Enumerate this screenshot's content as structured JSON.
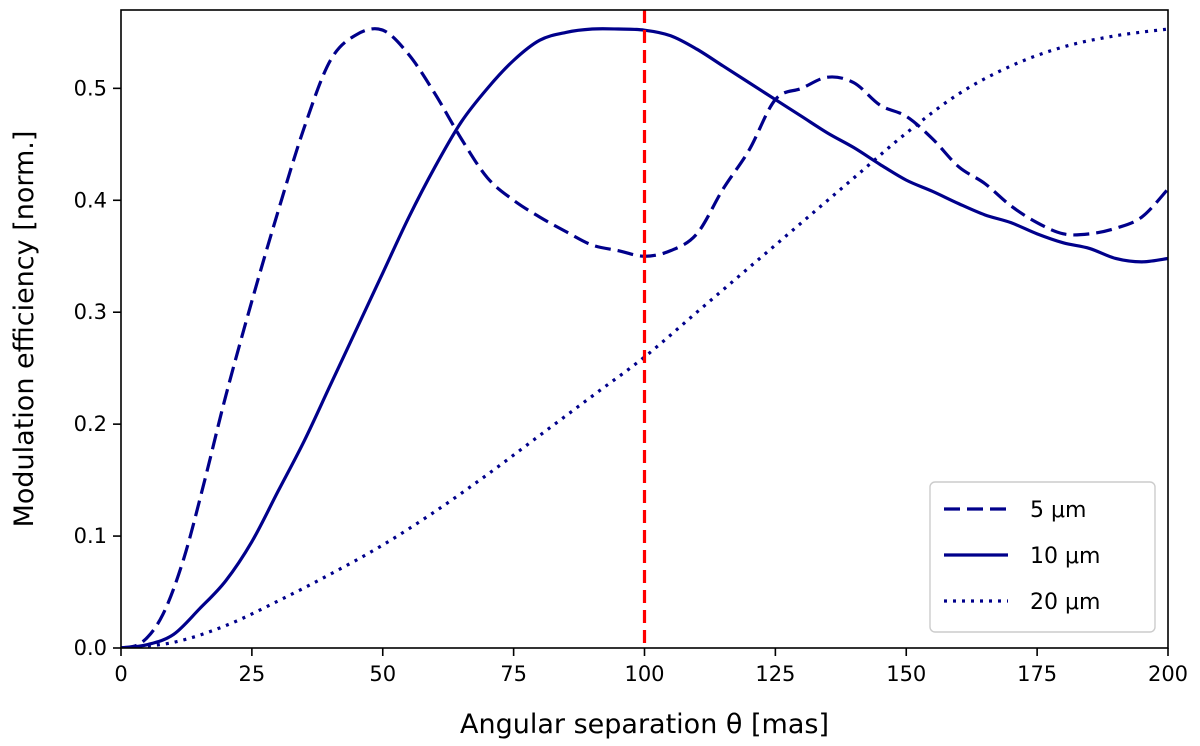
{
  "chart_data": {
    "type": "line",
    "title": "",
    "xlabel": "Angular separation θ [mas]",
    "ylabel": "Modulation efficiency [norm.]",
    "xlim": [
      0,
      200
    ],
    "ylim": [
      0,
      0.57
    ],
    "xticks": [
      0,
      25,
      50,
      75,
      100,
      125,
      150,
      175,
      200
    ],
    "xtick_labels": [
      "0",
      "25",
      "50",
      "75",
      "100",
      "125",
      "150",
      "175",
      "200"
    ],
    "yticks": [
      0.0,
      0.1,
      0.2,
      0.3,
      0.4,
      0.5
    ],
    "ytick_labels": [
      "0.0",
      "0.1",
      "0.2",
      "0.3",
      "0.4",
      "0.5"
    ],
    "grid": false,
    "legend_position": "bottom-right",
    "series": [
      {
        "name": "5 μm",
        "style": "dashed",
        "color": "#00008b",
        "x": [
          0,
          4,
          8,
          12,
          16,
          20,
          25,
          30,
          35,
          40,
          45,
          50,
          55,
          60,
          65,
          70,
          75,
          80,
          85,
          90,
          95,
          100,
          105,
          110,
          115,
          120,
          125,
          130,
          135,
          140,
          145,
          150,
          155,
          160,
          165,
          170,
          175,
          180,
          185,
          190,
          195,
          200
        ],
        "values": [
          0.0,
          0.005,
          0.03,
          0.08,
          0.15,
          0.225,
          0.31,
          0.39,
          0.465,
          0.525,
          0.548,
          0.552,
          0.53,
          0.495,
          0.455,
          0.42,
          0.4,
          0.385,
          0.372,
          0.36,
          0.355,
          0.35,
          0.355,
          0.37,
          0.41,
          0.445,
          0.49,
          0.5,
          0.51,
          0.505,
          0.485,
          0.475,
          0.455,
          0.43,
          0.415,
          0.395,
          0.38,
          0.37,
          0.37,
          0.375,
          0.385,
          0.41
        ]
      },
      {
        "name": "10 μm",
        "style": "solid",
        "color": "#00008b",
        "x": [
          0,
          5,
          10,
          15,
          20,
          25,
          30,
          35,
          40,
          45,
          50,
          55,
          60,
          65,
          70,
          75,
          80,
          85,
          90,
          95,
          100,
          105,
          110,
          115,
          120,
          125,
          130,
          135,
          140,
          145,
          150,
          155,
          160,
          165,
          170,
          175,
          180,
          185,
          190,
          195,
          200
        ],
        "values": [
          0.0,
          0.003,
          0.012,
          0.035,
          0.06,
          0.095,
          0.14,
          0.185,
          0.235,
          0.285,
          0.335,
          0.385,
          0.43,
          0.47,
          0.5,
          0.525,
          0.543,
          0.55,
          0.553,
          0.553,
          0.552,
          0.547,
          0.535,
          0.52,
          0.505,
          0.49,
          0.475,
          0.46,
          0.447,
          0.432,
          0.418,
          0.408,
          0.397,
          0.387,
          0.38,
          0.37,
          0.362,
          0.357,
          0.348,
          0.345,
          0.348
        ]
      },
      {
        "name": "20 μm",
        "style": "dotted",
        "color": "#00008b",
        "x": [
          0,
          10,
          20,
          30,
          40,
          50,
          60,
          70,
          80,
          90,
          100,
          110,
          120,
          130,
          140,
          150,
          160,
          170,
          180,
          190,
          200
        ],
        "values": [
          0.0,
          0.005,
          0.02,
          0.042,
          0.066,
          0.092,
          0.122,
          0.155,
          0.19,
          0.225,
          0.26,
          0.3,
          0.34,
          0.38,
          0.42,
          0.46,
          0.495,
          0.52,
          0.537,
          0.547,
          0.553
        ]
      }
    ],
    "annotations": [
      {
        "type": "vertical-line",
        "x": 100,
        "color": "#ff0000",
        "style": "dashed"
      }
    ]
  }
}
